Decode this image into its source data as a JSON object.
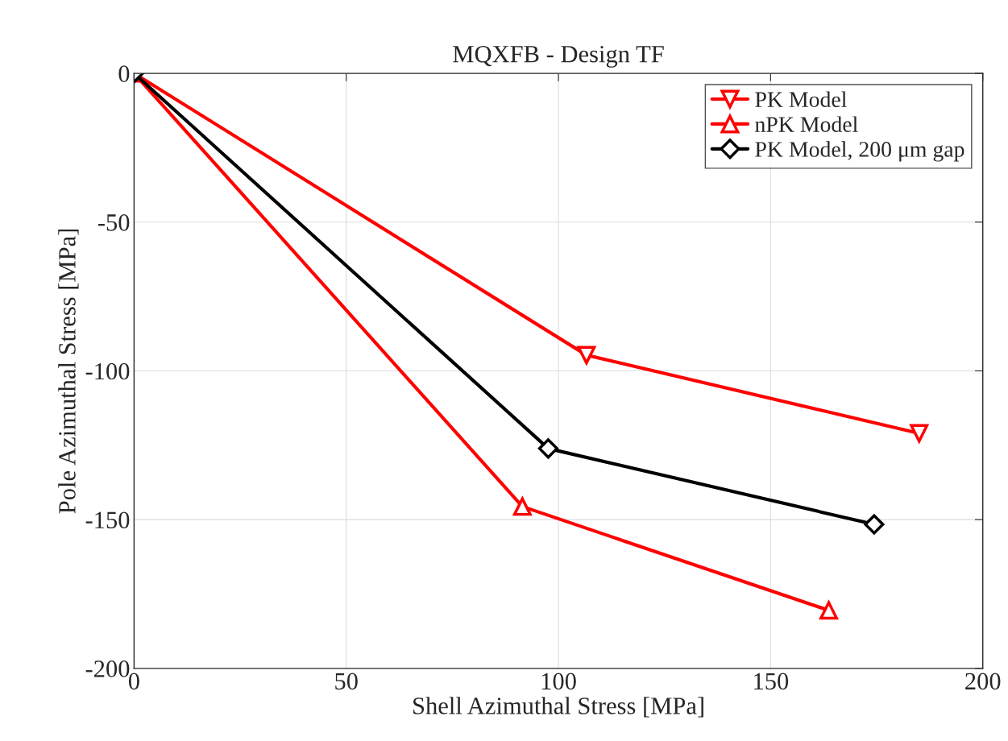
{
  "chart_data": {
    "type": "line",
    "title": "MQXFB - Design TF",
    "xlabel": "Shell Azimuthal Stress [MPa]",
    "ylabel": "Pole Azimuthal Stress [MPa]",
    "series": [
      {
        "name": "PK Model",
        "color": "#ff0000",
        "marker": "triangle_down",
        "x": [
          0,
          106.6,
          185.0
        ],
        "values": [
          0,
          -94.7,
          -121.0
        ]
      },
      {
        "name": "nPK Model",
        "color": "#ff0000",
        "marker": "triangle",
        "x": [
          0,
          91.5,
          163.7
        ],
        "values": [
          0,
          -145.6,
          -180.5
        ]
      },
      {
        "name": "PK Model, 200 μm gap",
        "color": "#000000",
        "marker": "diamond",
        "x": [
          0,
          97.6,
          174.4
        ],
        "values": [
          0,
          -126.1,
          -151.6
        ]
      }
    ],
    "xlim": [
      0,
      200
    ],
    "xticks": [
      0,
      50,
      100,
      150,
      200
    ],
    "ylim": [
      -200,
      0
    ],
    "yticks": [
      -200,
      -150,
      -100,
      -50,
      0
    ],
    "grid": true,
    "legend": "top right",
    "line_style": "solid"
  }
}
